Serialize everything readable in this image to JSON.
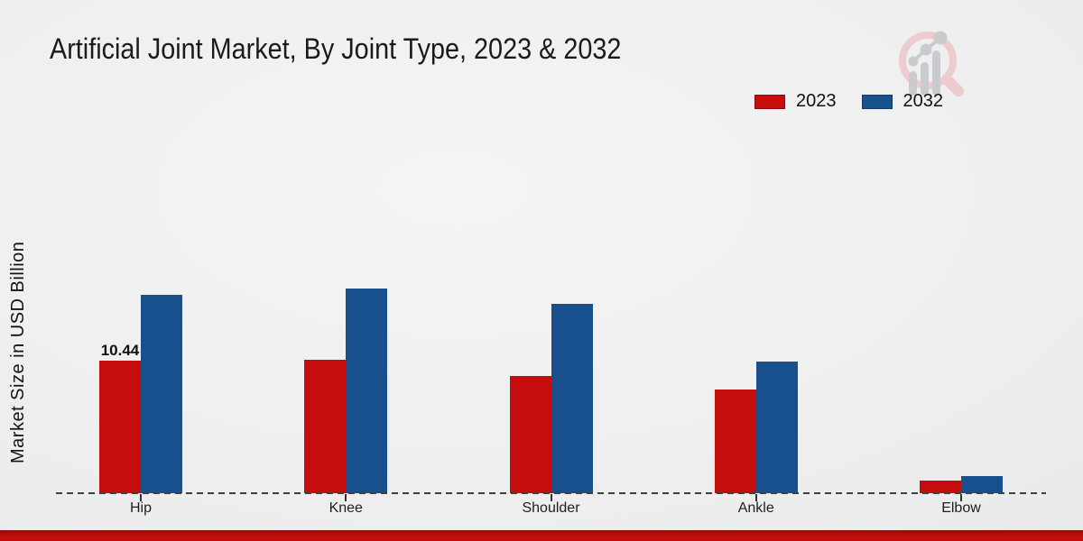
{
  "page": {
    "title": "Artificial Joint Market, By Joint Type, 2023 & 2032"
  },
  "legend": {
    "items": [
      {
        "label": "2023",
        "color": "#c50d0d"
      },
      {
        "label": "2032",
        "color": "#17508c"
      }
    ]
  },
  "watermark": {
    "name": "magnifier-bar-chart-logo",
    "ring_color": "#ecc9cc",
    "glyph_color": "#c7c8cb"
  },
  "footer": {
    "bar_color": "#c50d0d"
  },
  "chart_data": {
    "type": "bar",
    "title": "Artificial Joint Market, By Joint Type, 2023 & 2032",
    "xlabel": "",
    "ylabel": "Market Size in USD Billion",
    "categories": [
      "Hip",
      "Knee",
      "Shoulder",
      "Ankle",
      "Elbow"
    ],
    "series": [
      {
        "name": "2023",
        "color": "#c50d0d",
        "values": [
          10.44,
          10.5,
          9.2,
          8.2,
          0.96
        ],
        "point_labels": [
          "10.44",
          "",
          "",
          "",
          ""
        ]
      },
      {
        "name": "2032",
        "color": "#17508c",
        "values": [
          15.6,
          16.1,
          14.9,
          10.4,
          1.38
        ],
        "point_labels": [
          "",
          "",
          "",
          "",
          ""
        ]
      }
    ],
    "ylim": [
      0,
      18
    ],
    "y_ticks_visible": false,
    "grid": false,
    "legend_position": "top-right",
    "baseline_style": "dashed",
    "units": "USD Billion"
  }
}
